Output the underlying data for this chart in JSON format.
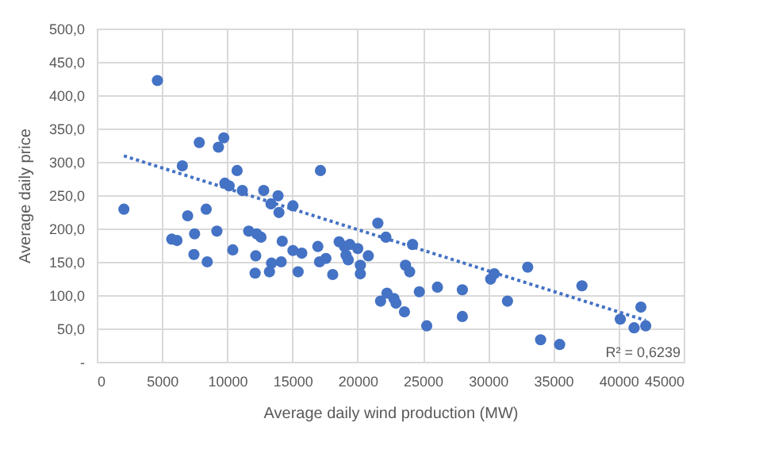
{
  "chart_data": {
    "type": "scatter",
    "xlabel": "Average daily wind production (MW)",
    "ylabel": "Average daily price",
    "xlim": [
      0,
      45000
    ],
    "xticks": [
      0,
      5000,
      10000,
      15000,
      20000,
      25000,
      30000,
      35000,
      40000,
      45000
    ],
    "ylim": [
      0,
      500
    ],
    "yticks": [
      {
        "value": 0,
        "label": "-"
      },
      {
        "value": 50,
        "label": "50,0"
      },
      {
        "value": 100,
        "label": "100,0"
      },
      {
        "value": 150,
        "label": "150,0"
      },
      {
        "value": 200,
        "label": "200,0"
      },
      {
        "value": 250,
        "label": "250,0"
      },
      {
        "value": 300,
        "label": "300,0"
      },
      {
        "value": 350,
        "label": "350,0"
      },
      {
        "value": 400,
        "label": "400,0"
      },
      {
        "value": 450,
        "label": "450,0"
      },
      {
        "value": 500,
        "label": "500,0"
      }
    ],
    "grid": true,
    "series": [
      {
        "marker": "circle",
        "color": "#4472c4",
        "x": [
          2080,
          4650,
          6560,
          7860,
          9330,
          9740,
          10760,
          9820,
          10150,
          11160,
          12800,
          13900,
          13360,
          13970,
          15040,
          6970,
          8390,
          5750,
          6150,
          7500,
          9210,
          7450,
          8470,
          10430,
          11650,
          12260,
          12590,
          14220,
          12190,
          12140,
          13240,
          13400,
          14140,
          15040,
          15440,
          17150,
          15720,
          16950,
          17080,
          17570,
          18090,
          18580,
          18990,
          19400,
          19110,
          19280,
          20010,
          20210,
          20210,
          20820,
          21550,
          22170,
          24210,
          23670,
          23990,
          22250,
          21760,
          22780,
          22940,
          23590,
          24730,
          25300,
          26120,
          28030,
          28030,
          30200,
          30480,
          31490,
          33040,
          37200,
          34030,
          35490,
          40140,
          41720,
          41200,
          42090
        ],
        "values": [
          229,
          422,
          294,
          329,
          322,
          336,
          287,
          268,
          264,
          257,
          257,
          249,
          237,
          224,
          234,
          219,
          229,
          184,
          182,
          192,
          196,
          161,
          150,
          168,
          196,
          192,
          187,
          181,
          159,
          133,
          135,
          148,
          150,
          167,
          135,
          287,
          163,
          173,
          150,
          155,
          131,
          180,
          173,
          176,
          160,
          153,
          170,
          145,
          132,
          159,
          208,
          187,
          176,
          145,
          135,
          103,
          91,
          95,
          88,
          75,
          105,
          54,
          112,
          108,
          68,
          124,
          132,
          91,
          142,
          114,
          33,
          26,
          64,
          82,
          51,
          54
        ]
      },
      {
        "type": "line",
        "color": "#4472c4",
        "line_style": "dotted",
        "x": [
          2080,
          42090
        ],
        "values": [
          309,
          62
        ]
      }
    ],
    "annotations": [
      "R² = 0,6239"
    ]
  }
}
